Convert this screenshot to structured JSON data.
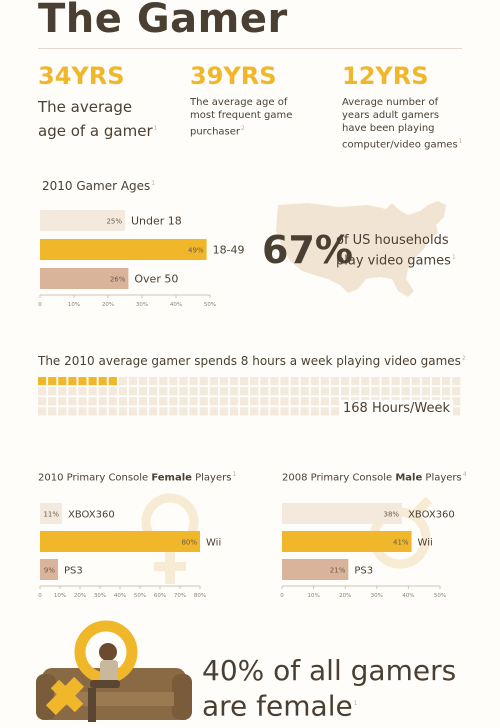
{
  "header": {
    "title": "The Gamer"
  },
  "stats": [
    {
      "value": "34YRS",
      "caption": "The average age of a gamer",
      "note": "1"
    },
    {
      "value": "39YRS",
      "caption": "The average age of most frequent game purchaser",
      "note": "2"
    },
    {
      "value": "12YRS",
      "caption": "Average number of years adult gamers have been playing computer/video games",
      "note": "1"
    }
  ],
  "households": {
    "value": "67%",
    "text": "of US households play video games",
    "note": "1"
  },
  "weekly": {
    "text": "The 2010 average gamer spends 8 hours a week playing video games",
    "note": "2",
    "hours_label": "168 Hours/Week"
  },
  "female_stat": {
    "text": "40% of all gamers are female",
    "note": "1"
  },
  "colors": {
    "accent": "#f0b72a",
    "tan": "#d9b49b",
    "cream": "#f3e9dc",
    "dark": "#4a3f33",
    "map": "#f1e4d3"
  },
  "icons": [
    "female-symbol-icon",
    "male-symbol-icon",
    "us-map-icon"
  ],
  "chart_data": [
    {
      "type": "bar",
      "title": "2010 Gamer Ages",
      "note": "1",
      "orientation": "horizontal",
      "categories": [
        "Under 18",
        "18-49",
        "Over 50"
      ],
      "values": [
        25,
        49,
        26
      ],
      "value_labels": [
        "25%",
        "49%",
        "26%"
      ],
      "colors": [
        "#f3e9dc",
        "#f0b72a",
        "#d9b49b"
      ],
      "xlim": [
        0,
        50
      ],
      "xticks": [
        "0",
        "10%",
        "20%",
        "30%",
        "40%",
        "50%"
      ]
    },
    {
      "type": "bar",
      "title_pre": "2010 Primary Console ",
      "title_bold": "Female",
      "title_post": " Players",
      "note": "1",
      "orientation": "horizontal",
      "categories": [
        "XBOX360",
        "Wii",
        "PS3"
      ],
      "values": [
        11,
        80,
        9
      ],
      "value_labels": [
        "11%",
        "80%",
        "9%"
      ],
      "colors": [
        "#f3e9dc",
        "#f0b72a",
        "#d9b49b"
      ],
      "xlim": [
        0,
        80
      ],
      "xticks": [
        "0",
        "10%",
        "20%",
        "30%",
        "40%",
        "50%",
        "60%",
        "70%",
        "80%"
      ]
    },
    {
      "type": "bar",
      "title_pre": "2008 Primary Console ",
      "title_bold": "Male",
      "title_post": " Players",
      "note": "4",
      "orientation": "horizontal",
      "categories": [
        "XBOX360",
        "Wii",
        "PS3"
      ],
      "values": [
        38,
        41,
        21
      ],
      "value_labels": [
        "38%",
        "41%",
        "21%"
      ],
      "colors": [
        "#f3e9dc",
        "#f0b72a",
        "#d9b49b"
      ],
      "xlim": [
        0,
        50
      ],
      "xticks": [
        "0",
        "10%",
        "20%",
        "30%",
        "40%",
        "50%"
      ]
    },
    {
      "type": "waffle",
      "total": 168,
      "highlighted": 8,
      "colors": [
        "#f0b72a",
        "#f3e9dc"
      ]
    }
  ]
}
